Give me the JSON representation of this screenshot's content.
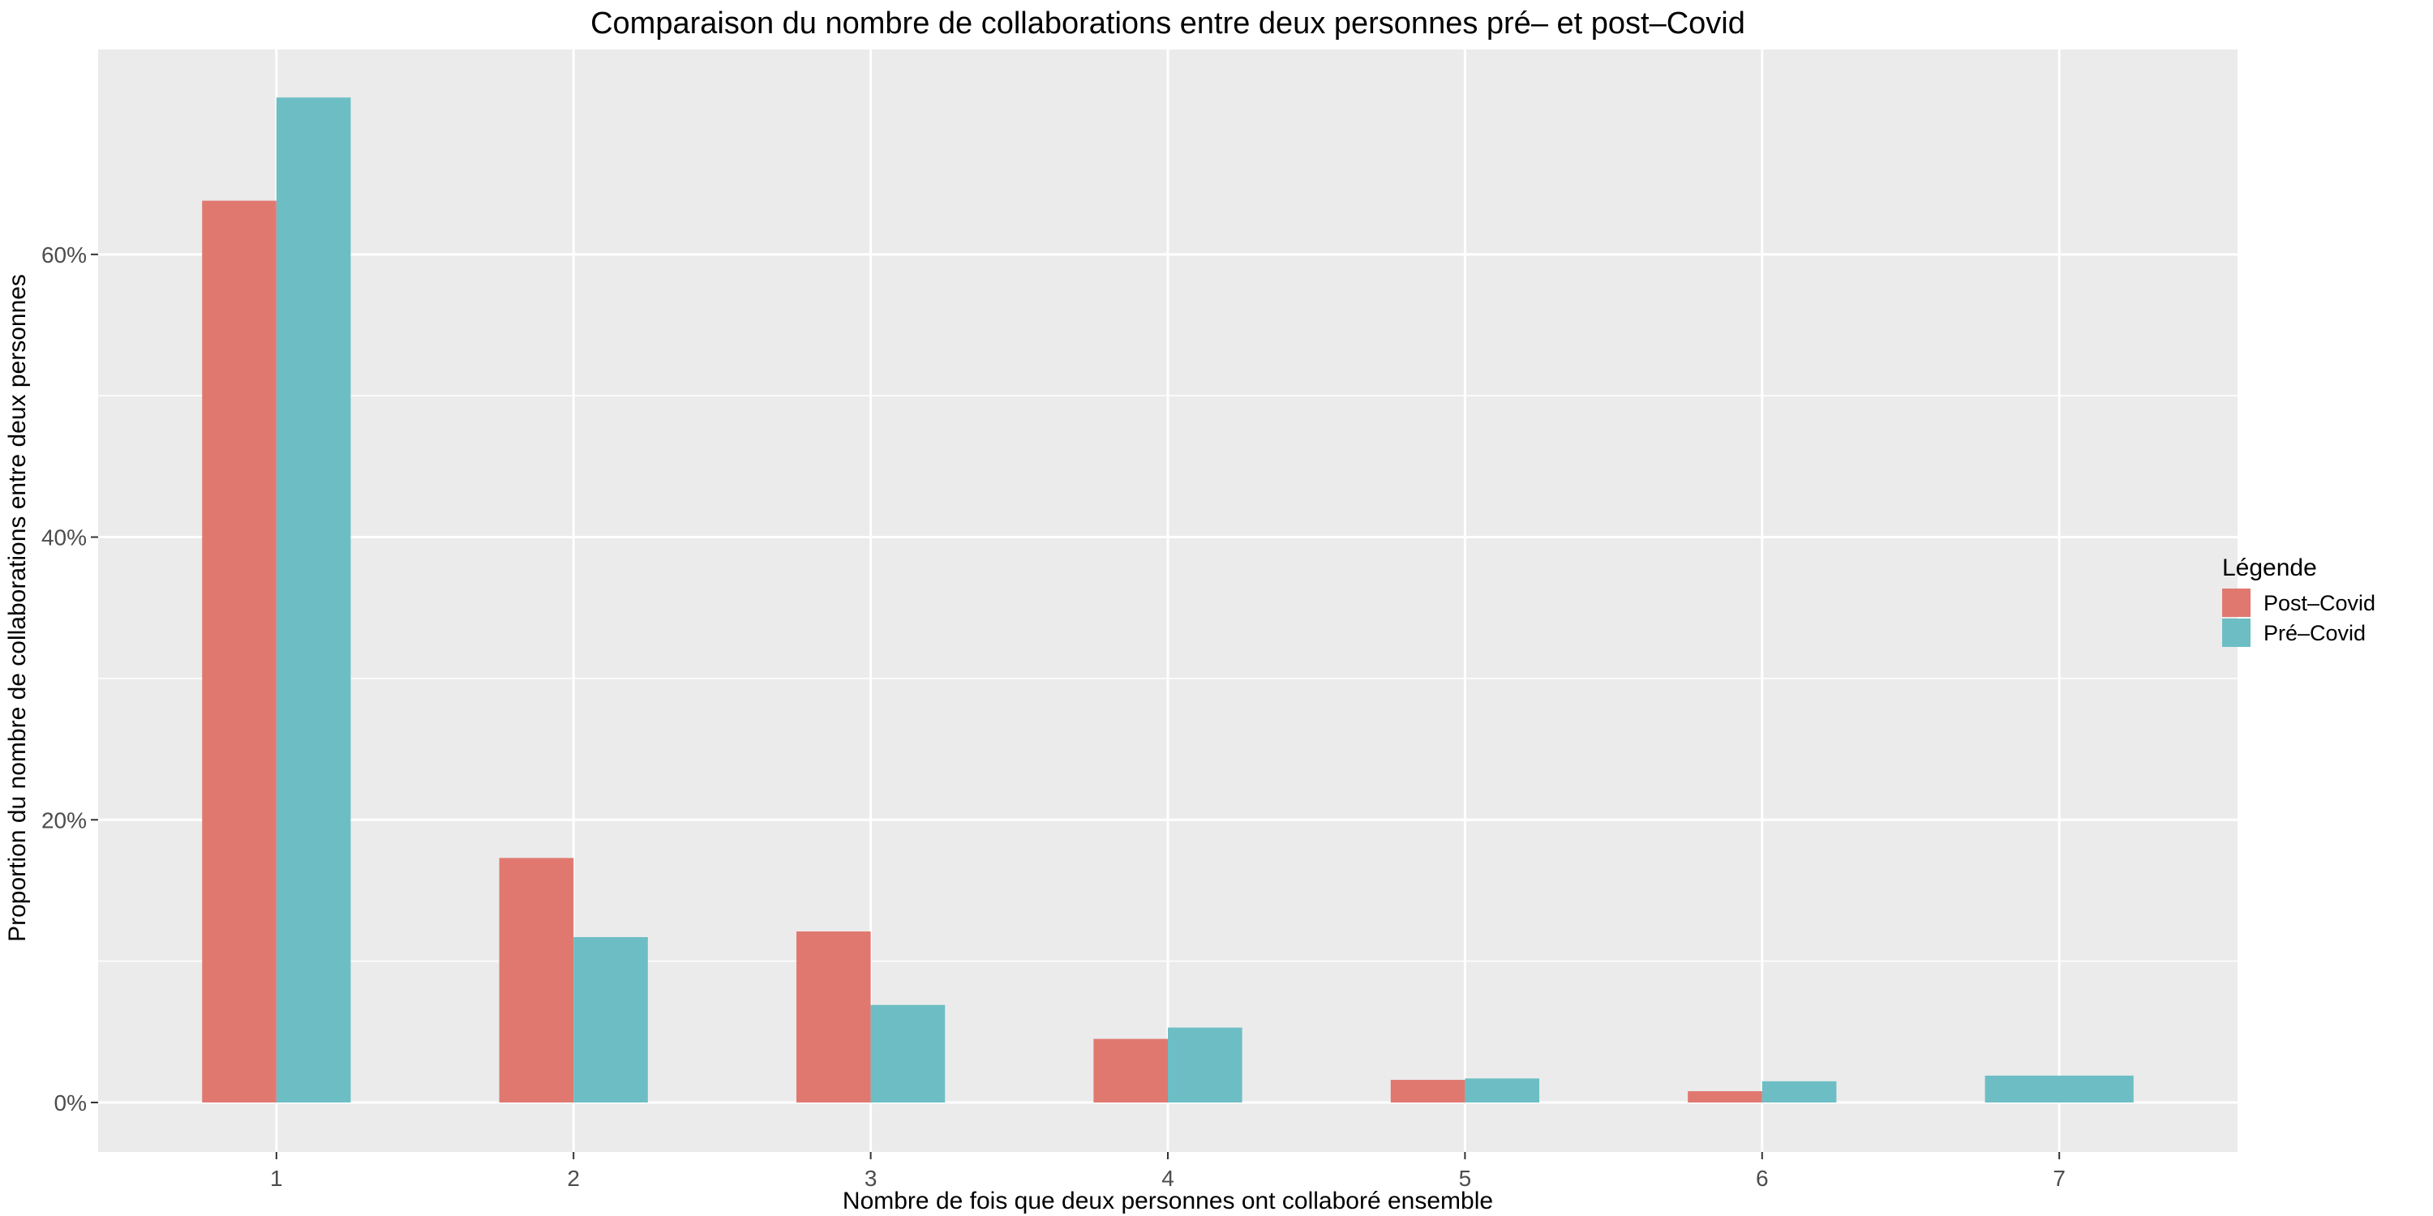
{
  "chart_data": {
    "type": "bar",
    "title": "Comparaison du nombre de collaborations entre deux personnes pré– et post–Covid",
    "xlabel": "Nombre de fois que deux personnes ont collaboré ensemble",
    "ylabel": "Proportion du nombre de collaborations entre deux personnes",
    "categories": [
      "1",
      "2",
      "3",
      "4",
      "5",
      "6",
      "7"
    ],
    "y_ticks": [
      0,
      20,
      40,
      60
    ],
    "y_tick_labels": [
      "0%",
      "20%",
      "40%",
      "60%"
    ],
    "ylim": [
      -3.5,
      74.5
    ],
    "y_unit": "%",
    "grid": true,
    "legend": {
      "title": "Légende",
      "position": "right"
    },
    "series": [
      {
        "name": "Post–Covid",
        "color": "#e07870",
        "values": [
          63.8,
          17.3,
          12.1,
          4.5,
          1.6,
          0.8,
          null
        ]
      },
      {
        "name": "Pré–Covid",
        "color": "#6cbec4",
        "values": [
          71.1,
          11.7,
          6.9,
          5.3,
          1.7,
          1.5,
          1.9
        ]
      }
    ],
    "panel_background": "#ebebeb",
    "grid_color": "#ffffff"
  }
}
